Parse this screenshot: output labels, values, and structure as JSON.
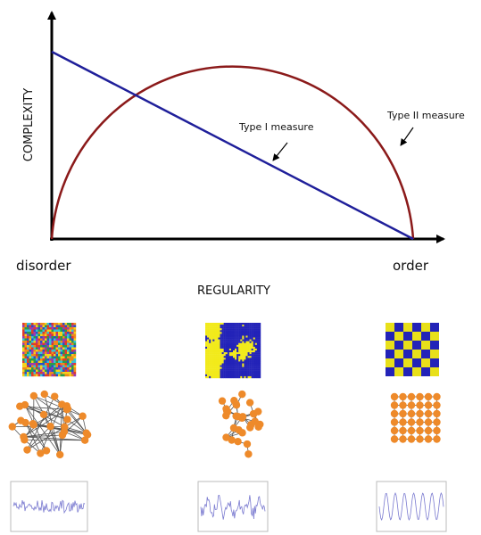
{
  "axes": {
    "y_label": "COMPLEXITY",
    "x_label": "REGULARITY",
    "left_end": "disorder",
    "right_end": "order"
  },
  "annotations": {
    "type1": "Type I measure",
    "type2": "Type II measure"
  }
}
